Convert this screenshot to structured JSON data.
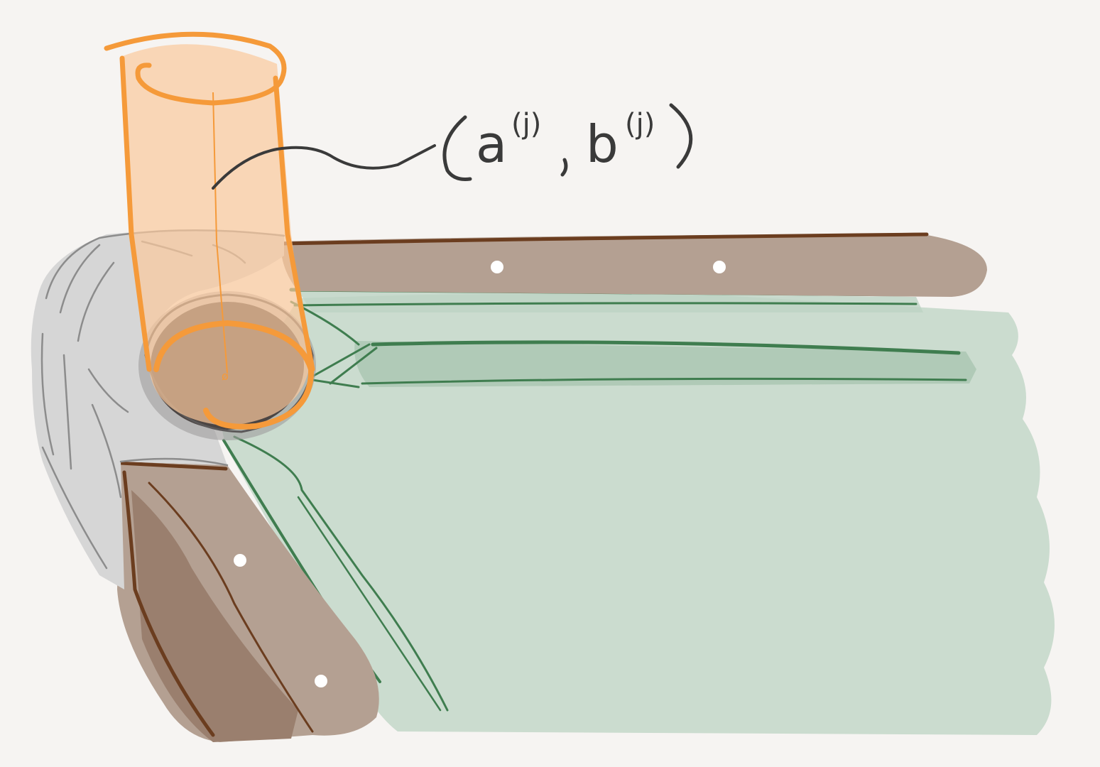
{
  "annotation": {
    "a": "a",
    "a_sup": "(j)",
    "b": "b",
    "b_sup": "(j)"
  },
  "colors": {
    "paper": "#f6f4f2",
    "green_fill": "#cbdccf",
    "green_line": "#3f7d4f",
    "brown_fill": "#b4a092",
    "brown_dark": "#9a7f6e",
    "brown_line": "#6b3d1f",
    "gray_fill": "#d6d6d6",
    "gray_line": "#8c8c8c",
    "orange_fill": "#fbc99c",
    "orange_line": "#f59a3a",
    "hole": "#4b4543",
    "ink": "#3a3a3a",
    "dot": "#ffffff"
  }
}
